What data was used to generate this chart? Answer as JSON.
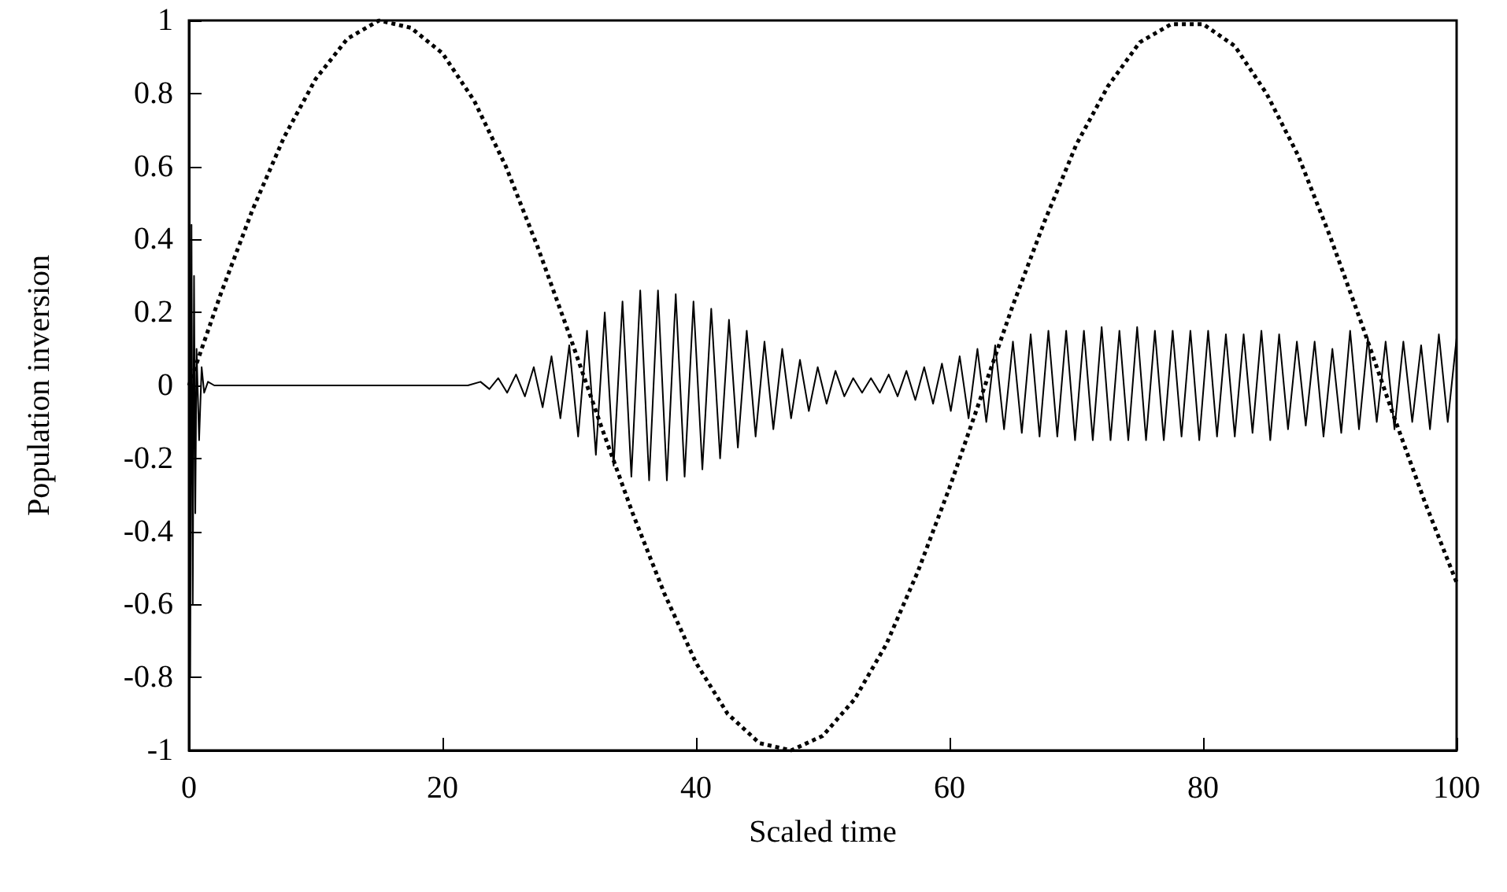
{
  "chart_data": {
    "type": "line",
    "xlabel": "Scaled time",
    "ylabel": "Population inversion",
    "xlim": [
      0,
      100
    ],
    "xticks": [
      0,
      20,
      40,
      60,
      80,
      100
    ],
    "ylim": [
      -1,
      1
    ],
    "yticks": [
      -1,
      -0.8,
      -0.6,
      -0.4,
      -0.2,
      0,
      0.2,
      0.4,
      0.6,
      0.8,
      1
    ],
    "grid": false,
    "marker": "none",
    "series": [
      {
        "color": "#000000",
        "line_style": "dotted",
        "x": [
          0,
          2.5,
          5,
          7.5,
          10,
          12.5,
          15,
          17.5,
          20,
          22.5,
          25,
          27.5,
          30,
          32.5,
          35,
          37.5,
          40,
          42.5,
          45,
          47.5,
          50,
          52.5,
          55,
          57.5,
          60,
          62.5,
          65,
          67.5,
          70,
          72.5,
          75,
          77.5,
          80,
          82.5,
          85,
          87.5,
          90,
          92.5,
          95,
          97.5,
          100
        ],
        "values": [
          0,
          0.25,
          0.48,
          0.68,
          0.84,
          0.95,
          1.0,
          0.98,
          0.91,
          0.78,
          0.6,
          0.38,
          0.14,
          -0.11,
          -0.35,
          -0.57,
          -0.76,
          -0.9,
          -0.98,
          -1.0,
          -0.96,
          -0.86,
          -0.71,
          -0.51,
          -0.28,
          -0.03,
          0.22,
          0.45,
          0.66,
          0.82,
          0.94,
          0.99,
          0.99,
          0.93,
          0.8,
          0.63,
          0.41,
          0.17,
          -0.08,
          -0.32,
          -0.54
        ]
      },
      {
        "color": "#000000",
        "line_style": "solid",
        "x": [
          0,
          0.1,
          0.2,
          0.3,
          0.4,
          0.5,
          0.6,
          0.8,
          1.0,
          1.2,
          1.5,
          2,
          22,
          23,
          23.7,
          24.4,
          25.1,
          25.8,
          26.5,
          27.2,
          27.9,
          28.6,
          29.3,
          30,
          30.7,
          31.4,
          32.1,
          32.8,
          33.5,
          34.2,
          34.9,
          35.6,
          36.3,
          37,
          37.7,
          38.4,
          39.1,
          39.8,
          40.5,
          41.2,
          41.9,
          42.6,
          43.3,
          44,
          44.7,
          45.4,
          46.1,
          46.8,
          47.5,
          48.2,
          48.9,
          49.6,
          50.3,
          51,
          51.7,
          52.4,
          53.1,
          53.8,
          54.5,
          55.2,
          55.9,
          56.6,
          57.3,
          58,
          58.7,
          59.4,
          60.1,
          60.8,
          61.5,
          62.2,
          62.9,
          63.6,
          64.3,
          65,
          65.7,
          66.4,
          67.1,
          67.8,
          68.5,
          69.2,
          69.9,
          70.6,
          71.3,
          72,
          72.7,
          73.4,
          74.1,
          74.8,
          75.5,
          76.2,
          76.9,
          77.6,
          78.3,
          79,
          79.7,
          80.4,
          81.1,
          81.8,
          82.5,
          83.2,
          83.9,
          84.6,
          85.3,
          86,
          86.7,
          87.4,
          88.1,
          88.8,
          89.5,
          90.2,
          90.9,
          91.6,
          92.3,
          93,
          93.7,
          94.4,
          95.1,
          95.8,
          96.5,
          97.2,
          97.9,
          98.6,
          99.3,
          100
        ],
        "values": [
          0.25,
          -0.8,
          0.44,
          -0.6,
          0.3,
          -0.35,
          0.1,
          -0.15,
          0.05,
          -0.02,
          0.01,
          0,
          0,
          0.01,
          -0.01,
          0.02,
          -0.02,
          0.03,
          -0.03,
          0.05,
          -0.06,
          0.08,
          -0.09,
          0.11,
          -0.14,
          0.15,
          -0.19,
          0.2,
          -0.22,
          0.23,
          -0.25,
          0.26,
          -0.26,
          0.26,
          -0.26,
          0.25,
          -0.25,
          0.23,
          -0.23,
          0.21,
          -0.2,
          0.18,
          -0.17,
          0.15,
          -0.14,
          0.12,
          -0.12,
          0.1,
          -0.09,
          0.07,
          -0.07,
          0.05,
          -0.05,
          0.04,
          -0.03,
          0.02,
          -0.02,
          0.02,
          -0.02,
          0.03,
          -0.03,
          0.04,
          -0.04,
          0.05,
          -0.05,
          0.06,
          -0.07,
          0.08,
          -0.09,
          0.1,
          -0.1,
          0.11,
          -0.12,
          0.12,
          -0.13,
          0.14,
          -0.14,
          0.15,
          -0.14,
          0.15,
          -0.15,
          0.15,
          -0.15,
          0.16,
          -0.15,
          0.15,
          -0.15,
          0.16,
          -0.15,
          0.15,
          -0.15,
          0.15,
          -0.14,
          0.15,
          -0.15,
          0.15,
          -0.14,
          0.14,
          -0.14,
          0.14,
          -0.13,
          0.15,
          -0.15,
          0.14,
          -0.12,
          0.12,
          -0.11,
          0.12,
          -0.14,
          0.1,
          -0.13,
          0.15,
          -0.12,
          0.13,
          -0.1,
          0.12,
          -0.12,
          0.12,
          -0.1,
          0.11,
          -0.12,
          0.14,
          -0.1,
          0.13
        ]
      }
    ]
  }
}
